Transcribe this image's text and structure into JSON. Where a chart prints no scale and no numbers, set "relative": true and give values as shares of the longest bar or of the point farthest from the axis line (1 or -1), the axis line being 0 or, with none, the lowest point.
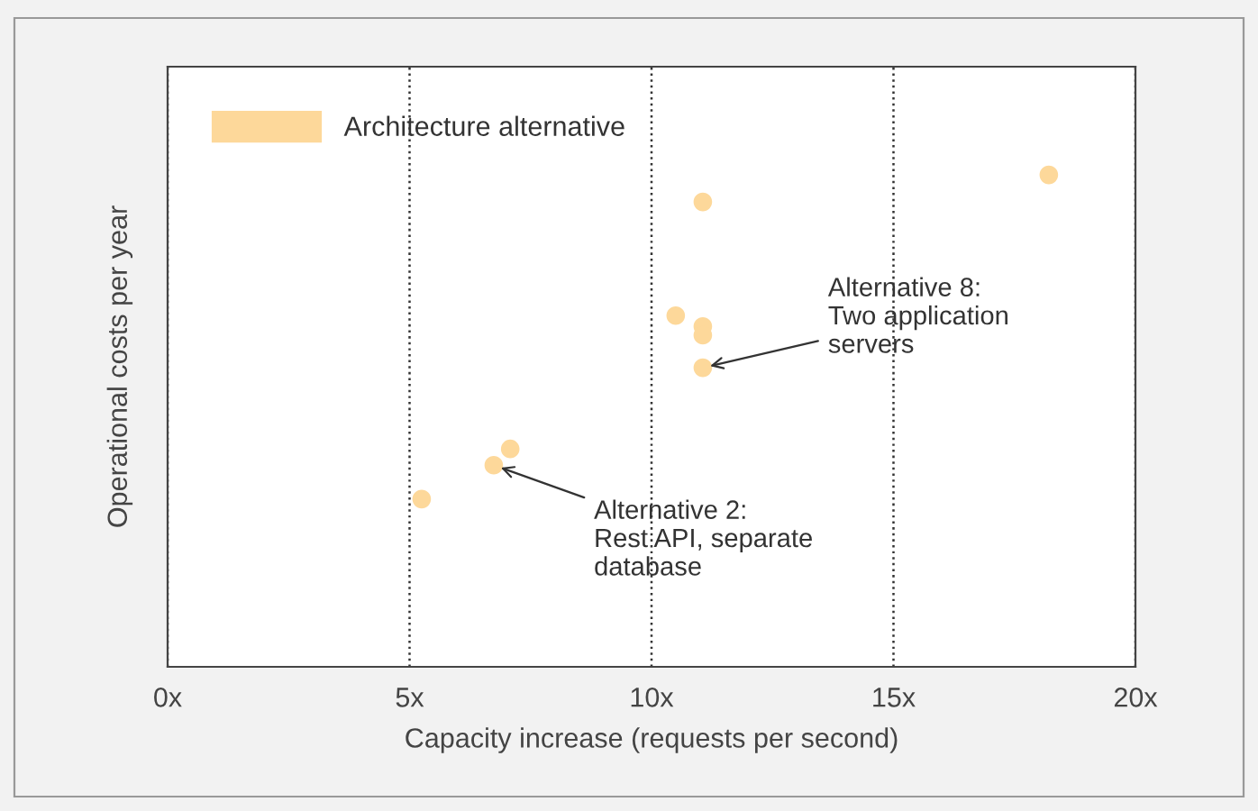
{
  "chart_data": {
    "type": "scatter",
    "relative": true,
    "xlabel": "Capacity increase (requests per second)",
    "ylabel": "Operational costs per year",
    "x": [
      5.25,
      6.74,
      7.08,
      11.06,
      10.5,
      11.06,
      11.06,
      11.06,
      18.21
    ],
    "series": [
      {
        "name": "Architecture alternative",
        "color": "#fdd89a",
        "values": [
          0.341,
          0.41,
          0.443,
          0.945,
          0.714,
          0.692,
          0.674,
          0.608,
          1
        ]
      }
    ],
    "xlim": [
      0,
      20
    ],
    "xticks": [
      {
        "value": 0,
        "label": "0x"
      },
      {
        "value": 5,
        "label": "5x"
      },
      {
        "value": 10,
        "label": "10x"
      },
      {
        "value": 15,
        "label": "15x"
      },
      {
        "value": 20,
        "label": "20x"
      }
    ],
    "grid": "x",
    "legend": "top left",
    "marker": "circle",
    "annotations": [
      {
        "text": "Alternative 8:\nTwo application\nservers",
        "x": 11.06,
        "y": 0.608
      },
      {
        "text": "Alternative 2:\nRest API, separate\ndatabase",
        "x": 6.74,
        "y": 0.41
      }
    ]
  }
}
